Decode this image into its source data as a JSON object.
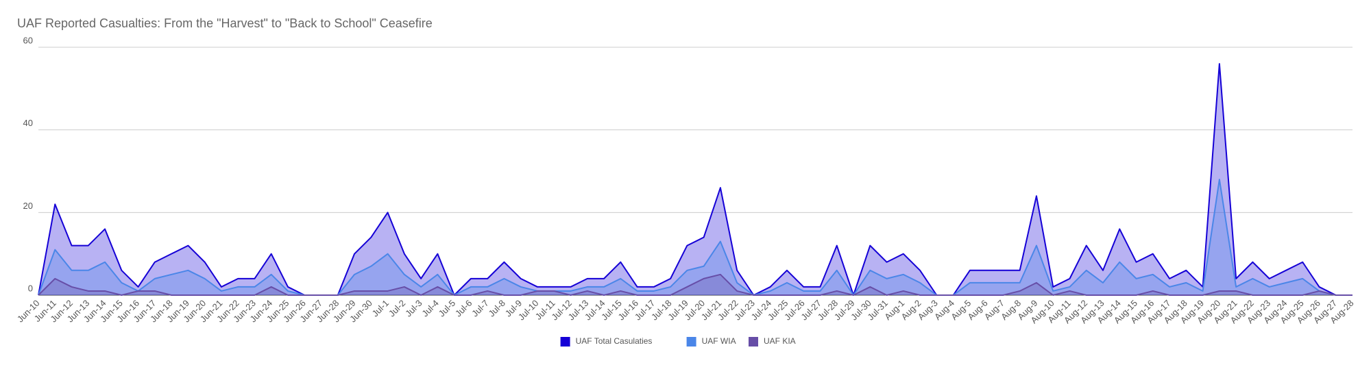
{
  "chart_data": {
    "type": "area",
    "title": "UAF Reported Casualties: From the \"Harvest\" to \"Back to School\" Ceasefire",
    "categories": [
      "Jun-10",
      "Jun-11",
      "Jun-12",
      "Jun-13",
      "Jun-14",
      "Jun-15",
      "Jun-16",
      "Jun-17",
      "Jun-18",
      "Jun-19",
      "Jun-20",
      "Jun-21",
      "Jun-22",
      "Jun-23",
      "Jun-24",
      "Jun-25",
      "Jun-26",
      "Jun-27",
      "Jun-28",
      "Jun-29",
      "Jun-30",
      "Jul-1",
      "Jul-2",
      "Jul-3",
      "Jul-4",
      "Jul-5",
      "Jul-6",
      "Jul-7",
      "Jul-8",
      "Jul-9",
      "Jul-10",
      "Jul-11",
      "Jul-12",
      "Jul-13",
      "Jul-14",
      "Jul-15",
      "Jul-16",
      "Jul-17",
      "Jul-18",
      "Jul-19",
      "Jul-20",
      "Jul-21",
      "Jul-22",
      "Jul-23",
      "Jul-24",
      "Jul-25",
      "Jul-26",
      "Jul-27",
      "Jul-28",
      "Jul-29",
      "Jul-30",
      "Jul-31",
      "Aug-1",
      "Aug-2",
      "Aug-3",
      "Aug-4",
      "Aug-5",
      "Aug-6",
      "Aug-7",
      "Aug-8",
      "Aug-9",
      "Aug-10",
      "Aug-11",
      "Aug-12",
      "Aug-13",
      "Aug-14",
      "Aug-15",
      "Aug-16",
      "Aug-17",
      "Aug-18",
      "Aug-19",
      "Aug-20",
      "Aug-21",
      "Aug-22",
      "Aug-23",
      "Aug-24",
      "Aug-25",
      "Aug-26",
      "Aug-27",
      "Aug-28"
    ],
    "series": [
      {
        "name": "UAF Total Casulaties",
        "color": "#1500d6",
        "values": [
          0,
          22,
          12,
          12,
          16,
          6,
          2,
          8,
          10,
          12,
          8,
          2,
          4,
          4,
          10,
          2,
          0,
          0,
          0,
          10,
          14,
          20,
          10,
          4,
          10,
          0,
          4,
          4,
          8,
          4,
          2,
          2,
          2,
          4,
          4,
          8,
          2,
          2,
          4,
          12,
          14,
          26,
          6,
          0,
          2,
          6,
          2,
          2,
          12,
          0,
          12,
          8,
          10,
          6,
          0,
          0,
          6,
          6,
          6,
          6,
          24,
          2,
          4,
          12,
          6,
          16,
          8,
          10,
          4,
          6,
          2,
          56,
          4,
          8,
          4,
          6,
          8,
          2,
          0,
          0
        ]
      },
      {
        "name": "UAF WIA",
        "color": "#4a86e8",
        "values": [
          0,
          11,
          6,
          6,
          8,
          3,
          1,
          4,
          5,
          6,
          4,
          1,
          2,
          2,
          5,
          1,
          0,
          0,
          0,
          5,
          7,
          10,
          5,
          2,
          5,
          0,
          2,
          2,
          4,
          2,
          1,
          1,
          1,
          2,
          2,
          4,
          1,
          1,
          2,
          6,
          7,
          13,
          3,
          0,
          1,
          3,
          1,
          1,
          6,
          0,
          6,
          4,
          5,
          3,
          0,
          0,
          3,
          3,
          3,
          3,
          12,
          1,
          2,
          6,
          3,
          8,
          4,
          5,
          2,
          3,
          1,
          28,
          2,
          4,
          2,
          3,
          4,
          1,
          0,
          0
        ]
      },
      {
        "name": "UAF KIA",
        "color": "#674ea7",
        "values": [
          0,
          4,
          2,
          1,
          1,
          0,
          1,
          1,
          0,
          0,
          0,
          0,
          0,
          0,
          2,
          0,
          0,
          0,
          0,
          1,
          1,
          1,
          2,
          0,
          2,
          0,
          0,
          1,
          0,
          0,
          1,
          1,
          0,
          1,
          0,
          1,
          0,
          0,
          0,
          2,
          4,
          5,
          1,
          0,
          0,
          0,
          0,
          0,
          1,
          0,
          2,
          0,
          1,
          0,
          0,
          0,
          0,
          0,
          0,
          1,
          3,
          0,
          1,
          0,
          0,
          0,
          0,
          1,
          0,
          0,
          0,
          1,
          1,
          0,
          0,
          0,
          0,
          1,
          0,
          0
        ]
      }
    ],
    "ylim": [
      0,
      60
    ],
    "yticks": [
      0,
      20,
      40,
      60
    ],
    "grid": true,
    "legend": "bottom"
  }
}
